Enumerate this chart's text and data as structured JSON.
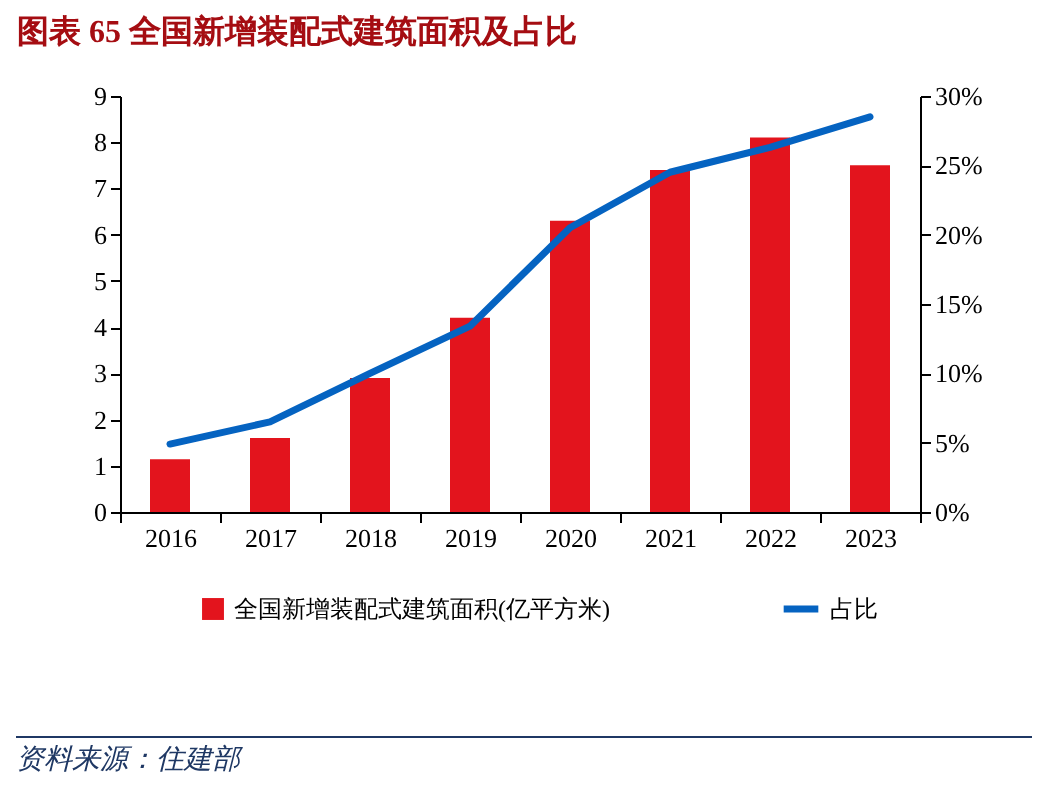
{
  "chart_data": {
    "type": "bar",
    "title": "图表 65 全国新增装配式建筑面积及占比",
    "categories": [
      "2016",
      "2017",
      "2018",
      "2019",
      "2020",
      "2021",
      "2022",
      "2023"
    ],
    "series": [
      {
        "name": "全国新增装配式建筑面积(亿平方米)",
        "color": "#e3141d",
        "values": [
          1.14,
          1.6,
          2.9,
          4.2,
          6.3,
          7.4,
          8.1,
          7.5
        ]
      },
      {
        "name": "占比",
        "type": "line",
        "axis": "y2",
        "color": "#0563c1",
        "values": [
          4.9,
          6.5,
          10,
          13.4,
          20.5,
          24.5,
          26.3,
          28.5
        ]
      }
    ],
    "ylim": [
      0,
      9
    ],
    "yticks": [
      0,
      1,
      2,
      3,
      4,
      5,
      6,
      7,
      8,
      9
    ],
    "y2lim": [
      0,
      30
    ],
    "y2ticks": [
      {
        "value": 0,
        "label": "0%"
      },
      {
        "value": 5,
        "label": "5%"
      },
      {
        "value": 10,
        "label": "10%"
      },
      {
        "value": 15,
        "label": "15%"
      },
      {
        "value": 20,
        "label": "20%"
      },
      {
        "value": 25,
        "label": "25%"
      },
      {
        "value": 30,
        "label": "30%"
      }
    ],
    "legend": "bottom",
    "annotations": [
      "资料来源：住建部"
    ]
  }
}
